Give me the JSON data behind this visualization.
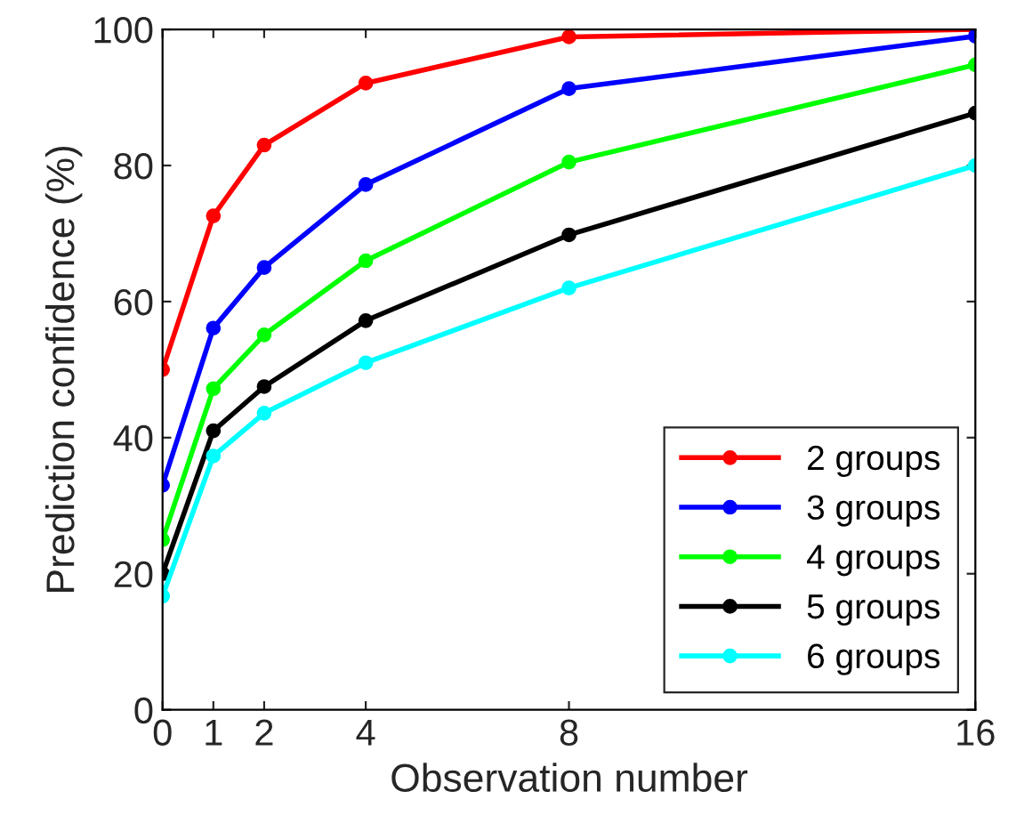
{
  "chart_data": {
    "type": "line",
    "xlabel": "Observation number",
    "ylabel": "Prediction confidence (%)",
    "x": [
      0,
      1,
      2,
      4,
      8,
      16
    ],
    "xlim": [
      0,
      16
    ],
    "xticks": [
      0,
      1,
      2,
      4,
      8,
      16
    ],
    "ylim": [
      0,
      100
    ],
    "yticks": [
      0,
      20,
      40,
      60,
      80,
      100
    ],
    "marker": "circle",
    "line_style": "solid",
    "legend": "bottom right",
    "grid": false,
    "series": [
      {
        "name": "2 groups",
        "color": "#ff0000",
        "values": [
          50,
          72.6,
          83,
          92.1,
          98.9,
          100
        ]
      },
      {
        "name": "3 groups",
        "color": "#0000ff",
        "values": [
          33,
          56.1,
          65,
          77.2,
          91.3,
          99
        ]
      },
      {
        "name": "4 groups",
        "color": "#00ff00",
        "values": [
          25,
          47.2,
          55.1,
          66,
          80.5,
          94.8
        ]
      },
      {
        "name": "5 groups",
        "color": "#000000",
        "values": [
          20,
          41,
          47.5,
          57.2,
          69.8,
          87.7
        ]
      },
      {
        "name": "6 groups",
        "color": "#00ffff",
        "values": [
          16.7,
          37.3,
          43.6,
          51,
          62,
          80
        ]
      }
    ]
  }
}
